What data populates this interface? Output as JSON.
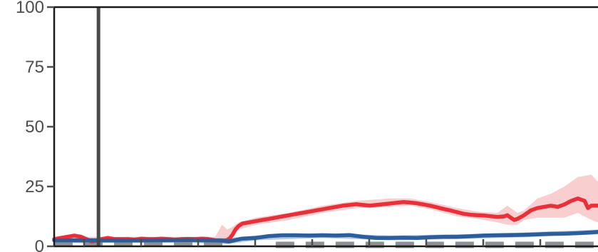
{
  "chart_data": {
    "type": "line",
    "title": "",
    "xlabel": "",
    "ylabel": "",
    "ylim": [
      0,
      100
    ],
    "y_ticks": [
      "0",
      "25",
      "50",
      "75",
      "100"
    ],
    "grid": false,
    "legend": "none",
    "annotations": [
      {
        "type": "vertical-line",
        "x": 66,
        "color": "#4a4a4a"
      }
    ],
    "series": [
      {
        "color": "#e8303a",
        "band_color": "#f4a5a8",
        "points": [
          [
            0,
            3
          ],
          [
            10,
            3.5
          ],
          [
            20,
            4
          ],
          [
            30,
            4.5
          ],
          [
            40,
            4
          ],
          [
            48,
            3
          ],
          [
            56,
            2
          ],
          [
            64,
            2.5
          ],
          [
            70,
            3
          ],
          [
            80,
            3.5
          ],
          [
            90,
            3
          ],
          [
            100,
            3
          ],
          [
            110,
            3
          ],
          [
            120,
            2.8
          ],
          [
            130,
            3.2
          ],
          [
            140,
            3
          ],
          [
            150,
            3
          ],
          [
            160,
            3.2
          ],
          [
            170,
            3
          ],
          [
            180,
            2.8
          ],
          [
            190,
            3
          ],
          [
            200,
            3.1
          ],
          [
            210,
            3
          ],
          [
            220,
            3.2
          ],
          [
            230,
            3
          ],
          [
            240,
            2.5
          ],
          [
            250,
            2.3
          ],
          [
            257,
            2.5
          ],
          [
            262,
            3.5
          ],
          [
            266,
            5
          ],
          [
            270,
            7
          ],
          [
            275,
            8.5
          ],
          [
            280,
            9.5
          ],
          [
            290,
            10
          ],
          [
            300,
            10.5
          ],
          [
            310,
            11
          ],
          [
            320,
            11.5
          ],
          [
            330,
            12
          ],
          [
            340,
            12.5
          ],
          [
            350,
            13
          ],
          [
            360,
            13.5
          ],
          [
            370,
            14
          ],
          [
            380,
            14.5
          ],
          [
            390,
            15
          ],
          [
            400,
            15.5
          ],
          [
            410,
            16
          ],
          [
            420,
            16.5
          ],
          [
            430,
            17
          ],
          [
            440,
            17.3
          ],
          [
            450,
            17.6
          ],
          [
            460,
            17.3
          ],
          [
            470,
            17
          ],
          [
            480,
            17.3
          ],
          [
            490,
            17.6
          ],
          [
            500,
            17.9
          ],
          [
            510,
            18.2
          ],
          [
            520,
            18.5
          ],
          [
            530,
            18.3
          ],
          [
            540,
            18
          ],
          [
            550,
            17.5
          ],
          [
            560,
            17
          ],
          [
            570,
            16.3
          ],
          [
            580,
            15.6
          ],
          [
            590,
            15
          ],
          [
            600,
            14.3
          ],
          [
            610,
            13.6
          ],
          [
            620,
            13.2
          ],
          [
            630,
            13
          ],
          [
            640,
            12.9
          ],
          [
            650,
            12.6
          ],
          [
            660,
            12.3
          ],
          [
            670,
            12.5
          ],
          [
            675,
            13
          ],
          [
            680,
            12
          ],
          [
            685,
            11
          ],
          [
            690,
            11.5
          ],
          [
            700,
            13
          ],
          [
            710,
            15
          ],
          [
            720,
            16
          ],
          [
            730,
            16.5
          ],
          [
            740,
            17
          ],
          [
            750,
            16.5
          ],
          [
            760,
            17.5
          ],
          [
            770,
            19
          ],
          [
            780,
            20
          ],
          [
            790,
            19
          ],
          [
            795,
            16
          ],
          [
            800,
            17
          ],
          [
            810,
            17
          ]
        ],
        "band": [
          [
            0,
            2,
            4
          ],
          [
            50,
            1,
            4
          ],
          [
            100,
            2,
            4
          ],
          [
            150,
            2,
            4
          ],
          [
            200,
            2,
            4
          ],
          [
            240,
            1,
            4
          ],
          [
            250,
            1,
            9
          ],
          [
            258,
            1,
            7
          ],
          [
            265,
            4,
            8
          ],
          [
            275,
            7,
            10
          ],
          [
            300,
            9,
            12
          ],
          [
            350,
            11,
            14
          ],
          [
            400,
            14,
            17
          ],
          [
            450,
            16,
            19
          ],
          [
            500,
            16.5,
            20
          ],
          [
            530,
            17,
            20
          ],
          [
            560,
            15.5,
            18.5
          ],
          [
            600,
            12.5,
            16
          ],
          [
            630,
            11.5,
            14.5
          ],
          [
            660,
            10,
            14
          ],
          [
            675,
            9,
            17
          ],
          [
            690,
            9,
            14
          ],
          [
            700,
            11,
            15
          ],
          [
            720,
            12,
            20
          ],
          [
            740,
            12,
            22
          ],
          [
            760,
            12,
            25
          ],
          [
            780,
            14,
            29
          ],
          [
            800,
            11,
            30
          ],
          [
            810,
            10,
            27
          ]
        ]
      },
      {
        "color": "#2b5e9a",
        "band_color": "#7ea1c9",
        "points": [
          [
            0,
            2.5
          ],
          [
            50,
            2.5
          ],
          [
            100,
            2.4
          ],
          [
            150,
            2.5
          ],
          [
            200,
            2.6
          ],
          [
            250,
            2.4
          ],
          [
            260,
            2
          ],
          [
            265,
            2.3
          ],
          [
            280,
            3.2
          ],
          [
            300,
            3.5
          ],
          [
            320,
            4.3
          ],
          [
            340,
            4.6
          ],
          [
            360,
            4.6
          ],
          [
            380,
            4.5
          ],
          [
            400,
            4.6
          ],
          [
            420,
            4.5
          ],
          [
            440,
            4.7
          ],
          [
            460,
            4
          ],
          [
            480,
            3.5
          ],
          [
            500,
            3.5
          ],
          [
            520,
            3.6
          ],
          [
            540,
            3.5
          ],
          [
            560,
            3.8
          ],
          [
            580,
            4
          ],
          [
            600,
            4
          ],
          [
            620,
            4.2
          ],
          [
            640,
            4.5
          ],
          [
            660,
            4.6
          ],
          [
            680,
            4.7
          ],
          [
            700,
            4.8
          ],
          [
            720,
            5
          ],
          [
            740,
            5.2
          ],
          [
            760,
            5.3
          ],
          [
            780,
            5.5
          ],
          [
            800,
            5.8
          ],
          [
            810,
            6
          ]
        ],
        "band": [
          [
            0,
            1.5,
            3.5
          ],
          [
            200,
            1.5,
            3.5
          ],
          [
            260,
            1,
            3.5
          ],
          [
            300,
            2.5,
            4.5
          ],
          [
            400,
            3.5,
            5.5
          ],
          [
            500,
            2.5,
            4.5
          ],
          [
            600,
            3,
            5
          ],
          [
            700,
            3.8,
            5.8
          ],
          [
            810,
            5,
            7
          ]
        ]
      }
    ],
    "reference_segments": [
      {
        "color": "#8c9294",
        "style": "dashed",
        "x_range": [
          0,
          256
        ],
        "value": 1.3
      },
      {
        "color": "#8c9294",
        "style": "dashed",
        "x_range": [
          330,
          810
        ],
        "value": 0.6
      }
    ]
  }
}
